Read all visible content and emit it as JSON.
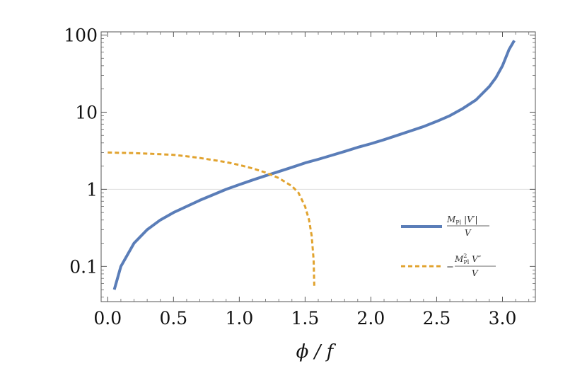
{
  "chart_data": {
    "type": "line",
    "title": "",
    "xlabel": "ϕ / f",
    "ylabel": "",
    "xlim": [
      -0.05,
      3.25
    ],
    "ylim": [
      0.035,
      110
    ],
    "yscale": "log",
    "grid": "horizontal line at y = 1",
    "legend_position": "center-right",
    "x_ticks": [
      "0.0",
      "0.5",
      "1.0",
      "1.5",
      "2.0",
      "2.5",
      "3.0"
    ],
    "x_tick_values": [
      0,
      0.5,
      1.0,
      1.5,
      2.0,
      2.5,
      3.0
    ],
    "y_ticks": [
      "0.1",
      "1",
      "10",
      "100"
    ],
    "y_tick_values": [
      0.1,
      1,
      10,
      100
    ],
    "series": [
      {
        "name": "M_Pl |V′| / V",
        "color": "#5a7db8",
        "style": "solid",
        "x": [
          0.05,
          0.1,
          0.2,
          0.3,
          0.4,
          0.5,
          0.6,
          0.7,
          0.8,
          0.9,
          1.0,
          1.1,
          1.2,
          1.3,
          1.4,
          1.5,
          1.6,
          1.7,
          1.8,
          1.9,
          2.0,
          2.1,
          2.2,
          2.3,
          2.4,
          2.5,
          2.6,
          2.7,
          2.8,
          2.9,
          2.95,
          3.0,
          3.05,
          3.09
        ],
        "y": [
          0.05,
          0.1,
          0.2,
          0.3,
          0.4,
          0.5,
          0.6,
          0.72,
          0.85,
          1.0,
          1.15,
          1.32,
          1.5,
          1.7,
          1.93,
          2.2,
          2.45,
          2.75,
          3.1,
          3.5,
          3.9,
          4.4,
          5.0,
          5.7,
          6.5,
          7.6,
          9.0,
          11.2,
          14.5,
          21.5,
          28.0,
          40.0,
          65.0,
          85.0
        ]
      },
      {
        "name": "−M_Pl² V″ / V",
        "color": "#e1a32f",
        "style": "dashed",
        "x": [
          0.0,
          0.1,
          0.2,
          0.3,
          0.4,
          0.5,
          0.6,
          0.7,
          0.8,
          0.9,
          1.0,
          1.1,
          1.2,
          1.3,
          1.4,
          1.45,
          1.5,
          1.53,
          1.55,
          1.565,
          1.57
        ],
        "y": [
          3.0,
          2.97,
          2.95,
          2.9,
          2.85,
          2.8,
          2.68,
          2.55,
          2.4,
          2.25,
          2.07,
          1.87,
          1.65,
          1.4,
          1.1,
          0.9,
          0.6,
          0.4,
          0.25,
          0.12,
          0.055
        ]
      }
    ]
  }
}
